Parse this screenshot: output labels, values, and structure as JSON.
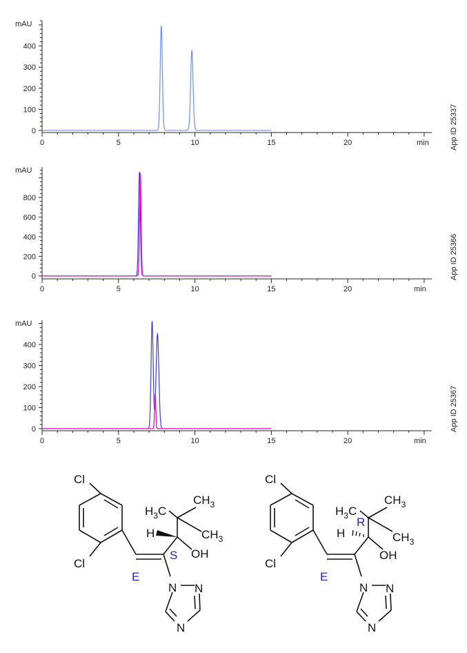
{
  "chart_data": [
    {
      "type": "line",
      "ylabel": "mAU",
      "xlabel": "min",
      "side_label": "App ID 25337",
      "xlim": [
        0,
        25.5
      ],
      "ylim": [
        -10,
        520
      ],
      "x_ticks": [
        0,
        5,
        10,
        15,
        20
      ],
      "y_ticks": [
        0,
        100,
        200,
        300,
        400
      ],
      "trace_end": 15,
      "series": [
        {
          "color": "#6a8fe6",
          "peaks": [
            {
              "rt": 7.8,
              "height": 495,
              "width": 0.07
            },
            {
              "rt": 9.8,
              "height": 380,
              "width": 0.08
            }
          ]
        }
      ]
    },
    {
      "type": "line",
      "ylabel": "mAU",
      "xlabel": "min",
      "side_label": "App ID 25366",
      "xlim": [
        0,
        25.5
      ],
      "ylim": [
        -30,
        1110
      ],
      "x_ticks": [
        0,
        5,
        10,
        15,
        20
      ],
      "y_ticks": [
        0,
        200,
        400,
        600,
        800
      ],
      "trace_end": 15,
      "series": [
        {
          "color": "#3b3bdc",
          "peaks": [
            {
              "rt": 6.37,
              "height": 1060,
              "width": 0.06
            }
          ]
        },
        {
          "color": "#e020c8",
          "peaks": [
            {
              "rt": 6.43,
              "height": 1050,
              "width": 0.05
            }
          ]
        }
      ]
    },
    {
      "type": "line",
      "ylabel": "mAU",
      "xlabel": "min",
      "side_label": "App ID 25367",
      "xlim": [
        0,
        25.5
      ],
      "ylim": [
        -10,
        515
      ],
      "x_ticks": [
        0,
        5,
        10,
        15,
        20
      ],
      "y_ticks": [
        0,
        100,
        200,
        300,
        400
      ],
      "trace_end": 15,
      "series": [
        {
          "color": "#3b3bdc",
          "peaks": [
            {
              "rt": 7.2,
              "height": 510,
              "width": 0.07
            },
            {
              "rt": 7.55,
              "height": 450,
              "width": 0.09
            }
          ]
        },
        {
          "color": "#e020c8",
          "peaks": [
            {
              "rt": 7.4,
              "height": 165,
              "width": 0.04
            }
          ]
        }
      ]
    }
  ],
  "structures": [
    {
      "stereo_label": "S",
      "geometry_label": "E"
    },
    {
      "stereo_label": "R",
      "geometry_label": "E"
    }
  ],
  "atoms": {
    "cl": "Cl",
    "h": "H",
    "oh": "OH",
    "n": "N",
    "c": "C",
    "h3": "H",
    "sub3": "3"
  },
  "colors": {
    "stereo": "#2020d0",
    "axis": "#222222"
  }
}
